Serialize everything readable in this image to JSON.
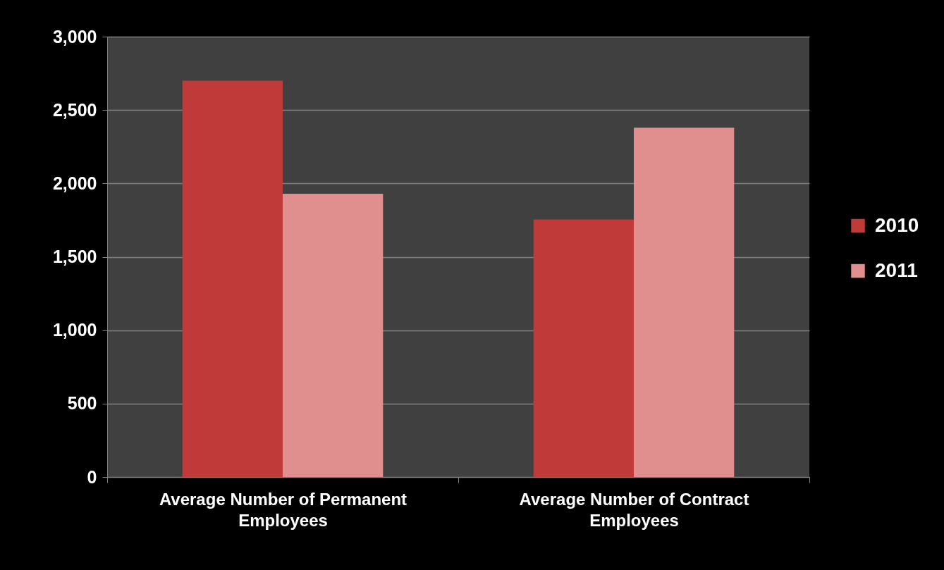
{
  "chart_data": {
    "type": "bar",
    "categories": [
      "Average Number of Permanent Employees",
      "Average Number of Contract Employees"
    ],
    "series": [
      {
        "name": "2010",
        "color": "#c03a3a",
        "values": [
          2700,
          1755
        ]
      },
      {
        "name": "2011",
        "color": "#e08e8e",
        "values": [
          1930,
          2380
        ]
      }
    ],
    "ylim": [
      0,
      3000
    ],
    "yticks": [
      0,
      500,
      {
        "value": 1000,
        "label": "1,000"
      },
      {
        "value": 1500,
        "label": "1,500"
      },
      {
        "value": 2000,
        "label": "2,000"
      },
      {
        "value": 2500,
        "label": "2,500"
      },
      {
        "value": 3000,
        "label": "3,000"
      }
    ],
    "grid": "y",
    "legend": "right"
  }
}
